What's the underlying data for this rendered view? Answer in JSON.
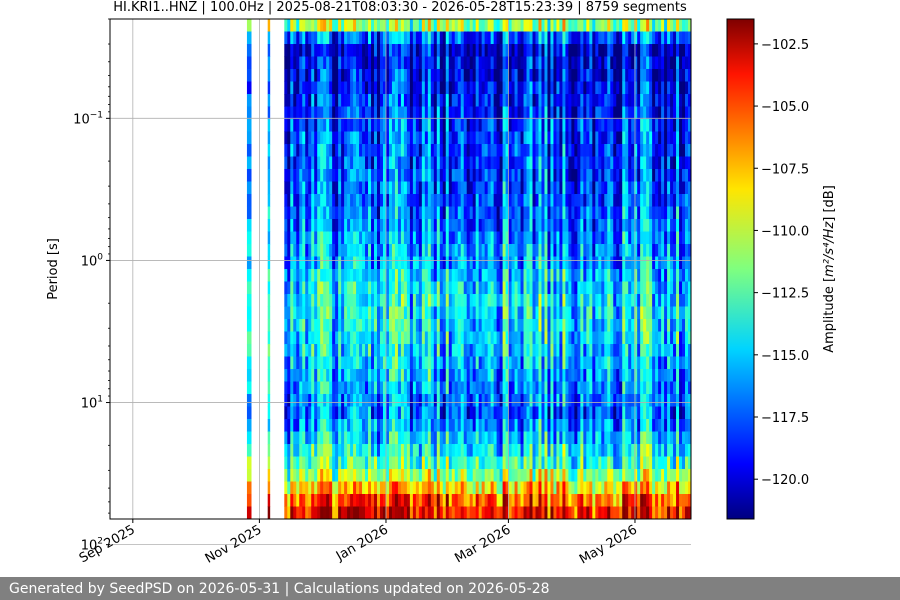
{
  "chart_data": {
    "type": "heatmap",
    "title": "HI.KRI1..HNZ | 100.0Hz | 2025-08-21T08:03:30 - 2026-05-28T15:23:39 | 8759 segments",
    "ylabel": "Period [s]",
    "yscale": "log",
    "yaxis_inverted": true,
    "ylim": [
      0.02,
      66
    ],
    "y_ticks": [
      {
        "value": 0.1,
        "base": "10",
        "exp": "−1"
      },
      {
        "value": 1,
        "base": "10",
        "exp": "0"
      },
      {
        "value": 10,
        "base": "10",
        "exp": "1"
      },
      {
        "value": 100,
        "base": "10",
        "exp": "2"
      }
    ],
    "xlim": [
      "2025-08-21",
      "2026-05-28"
    ],
    "x_ticks": [
      {
        "date": "2025-09-01",
        "label": "Sep 2025"
      },
      {
        "date": "2025-11-01",
        "label": "Nov 2025"
      },
      {
        "date": "2026-01-01",
        "label": "Jan 2026"
      },
      {
        "date": "2026-03-01",
        "label": "Mar 2026"
      },
      {
        "date": "2026-05-01",
        "label": "May 2026"
      }
    ],
    "grid": true,
    "colorbar": {
      "label_pre": "Amplitude [",
      "label_math": "m²/s⁴/Hz",
      "label_post": "] [dB]",
      "colormap": "jet",
      "vmin": -121.6,
      "vmax": -101.5,
      "ticks": [
        "−102.5",
        "−105.0",
        "−107.5",
        "−110.0",
        "−112.5",
        "−115.0",
        "−117.5",
        "−120.0"
      ],
      "tick_values": [
        -102.5,
        -105.0,
        -107.5,
        -110.0,
        -112.5,
        -115.0,
        -117.5,
        -120.0
      ]
    },
    "data_segments": [
      {
        "start": "2025-10-26",
        "end": "2025-10-28",
        "note": "isolated column"
      },
      {
        "start": "2025-11-05",
        "end": "2025-11-06",
        "note": "isolated column"
      },
      {
        "start": "2025-11-13",
        "end": "2026-05-28",
        "note": "continuous coverage"
      }
    ],
    "typical_level_profile": [
      {
        "period": 0.02,
        "db": -108
      },
      {
        "period": 0.03,
        "db": -120
      },
      {
        "period": 0.1,
        "db": -118
      },
      {
        "period": 0.5,
        "db": -117
      },
      {
        "period": 2,
        "db": -114
      },
      {
        "period": 5,
        "db": -115
      },
      {
        "period": 12,
        "db": -117
      },
      {
        "period": 30,
        "db": -112
      },
      {
        "period": 50,
        "db": -105
      },
      {
        "period": 66,
        "db": -103
      }
    ]
  },
  "footer": {
    "text": "Generated by SeedPSD on 2026-05-31 | Calculations updated on 2026-05-28"
  }
}
